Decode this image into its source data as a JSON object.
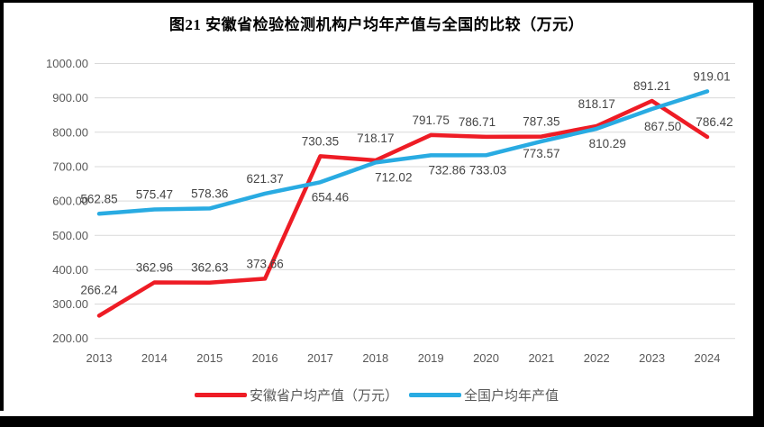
{
  "title": "图21 安徽省检验检测机构户均年产值与全国的比较（万元）",
  "style": {
    "background": "#ffffff",
    "frame_color": "#000000",
    "gridline_color": "#d9d9d9",
    "axis_text_color": "#595959",
    "data_label_color": "#454545",
    "anhui_red": "#ee1c25",
    "national_blue": "#29abe2"
  },
  "chart_data": {
    "type": "line",
    "title": "图21 安徽省检验检测机构户均年产值与全国的比较（万元）",
    "categories": [
      "2013",
      "2014",
      "2015",
      "2016",
      "2017",
      "2018",
      "2019",
      "2020",
      "2021",
      "2022",
      "2023",
      "2024"
    ],
    "series": [
      {
        "id": "anhui",
        "name": "安徽省户均产值（万元）",
        "color": "#ee1c25",
        "values": [
          266.24,
          362.96,
          362.63,
          373.66,
          730.35,
          718.17,
          791.75,
          786.71,
          787.35,
          818.17,
          891.21,
          786.42
        ],
        "label_positions": [
          "above",
          "above",
          "above",
          "above",
          "above",
          "above",
          "above",
          "above",
          "above",
          "above",
          "above",
          "above"
        ],
        "label_dx": [
          0,
          0,
          0,
          0,
          0,
          0,
          0,
          -10,
          0,
          0,
          0,
          8
        ],
        "label_dy": [
          -12,
          0,
          0,
          0,
          0,
          -8,
          0,
          0,
          0,
          -8,
          0,
          0
        ]
      },
      {
        "id": "national",
        "name": "全国户均年产值",
        "color": "#29abe2",
        "values": [
          562.85,
          575.47,
          578.36,
          621.37,
          654.46,
          712.02,
          732.86,
          733.03,
          773.57,
          810.29,
          867.5,
          919.01
        ],
        "label_positions": [
          "above",
          "above",
          "above",
          "above",
          "below",
          "below",
          "below",
          "below",
          "below",
          "below",
          "below",
          "above"
        ],
        "label_dx": [
          0,
          0,
          0,
          0,
          11,
          20,
          18,
          2,
          0,
          12,
          12,
          5
        ],
        "label_dy": [
          0,
          0,
          0,
          0,
          0,
          0,
          0,
          0,
          -3,
          0,
          3,
          0
        ]
      }
    ],
    "ylim": [
      200,
      1000
    ],
    "ytick_step": 100,
    "ytick_decimals": 2,
    "grid": true,
    "legend_position": "bottom"
  }
}
